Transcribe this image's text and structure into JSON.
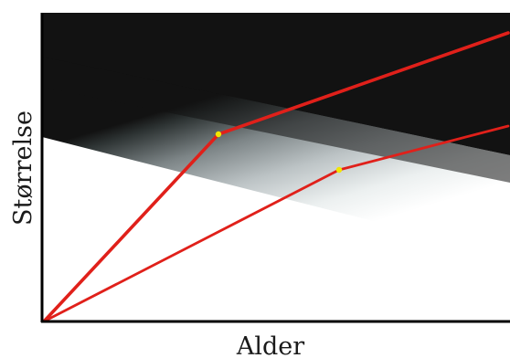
{
  "labels": {
    "x_axis": "Alder",
    "y_axis": "Størrelse"
  },
  "colors": {
    "dark_region": "#121212",
    "gradient_mid": "#bcc3c5",
    "light_region": "#ffffff",
    "growth_line": "#e0201a",
    "breakpoint_marker": "#f2e600",
    "axis": "#000000"
  },
  "diagram": {
    "description_items": [
      "upper-growth-curve",
      "lower-growth-curve"
    ]
  }
}
